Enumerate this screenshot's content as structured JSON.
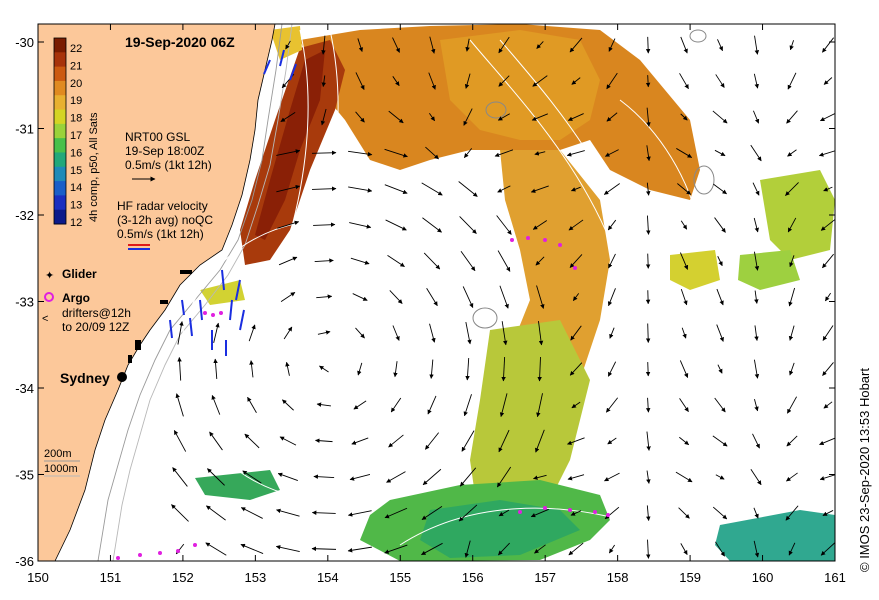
{
  "map": {
    "title": "19-Sep-2020 06Z",
    "credit": "© IMOS 23-Sep-2020 13:53 Hobart",
    "x_ticks": [
      "150",
      "151",
      "152",
      "153",
      "154",
      "155",
      "156",
      "157",
      "158",
      "159",
      "160",
      "161"
    ],
    "y_ticks": [
      "-30",
      "-31",
      "-32",
      "-33",
      "-34",
      "-35",
      "-36"
    ]
  },
  "colorbar": {
    "label": "4h comp, p50, All Sats",
    "ticks": [
      "22",
      "21",
      "20",
      "19",
      "18",
      "17",
      "16",
      "15",
      "14",
      "13",
      "12"
    ],
    "colors": [
      "#7a1c00",
      "#a8330a",
      "#cc5a10",
      "#e08a20",
      "#e8b030",
      "#d4d424",
      "#9ad23a",
      "#48c04a",
      "#22a87a",
      "#1f8ab8",
      "#1a5ec8",
      "#1a2ec0",
      "#0c1a8a"
    ]
  },
  "legend": {
    "gsl_title": "NRT00 GSL",
    "gsl_time": "19-Sep 18:00Z",
    "gsl_scale": "0.5m/s (1kt 12h)",
    "hf_title": "HF radar velocity",
    "hf_avg": "(3-12h avg) noQC",
    "hf_scale": "0.5m/s (1kt 12h)",
    "glider": "Glider",
    "argo": "Argo",
    "drifters_1": "drifters@12h",
    "drifters_2": "to 20/09 12Z",
    "city": "Sydney",
    "depth_200": "200m",
    "depth_1000": "1000m"
  },
  "colors": {
    "land": "#fcc89a",
    "warm": "#d4751f",
    "hot": "#a83a0c",
    "cool": "#a8c83a",
    "cold": "#3cb04a",
    "hf_blue": "#1a2ee0",
    "hf_red": "#e01a1a",
    "glider": "#e020e0"
  }
}
